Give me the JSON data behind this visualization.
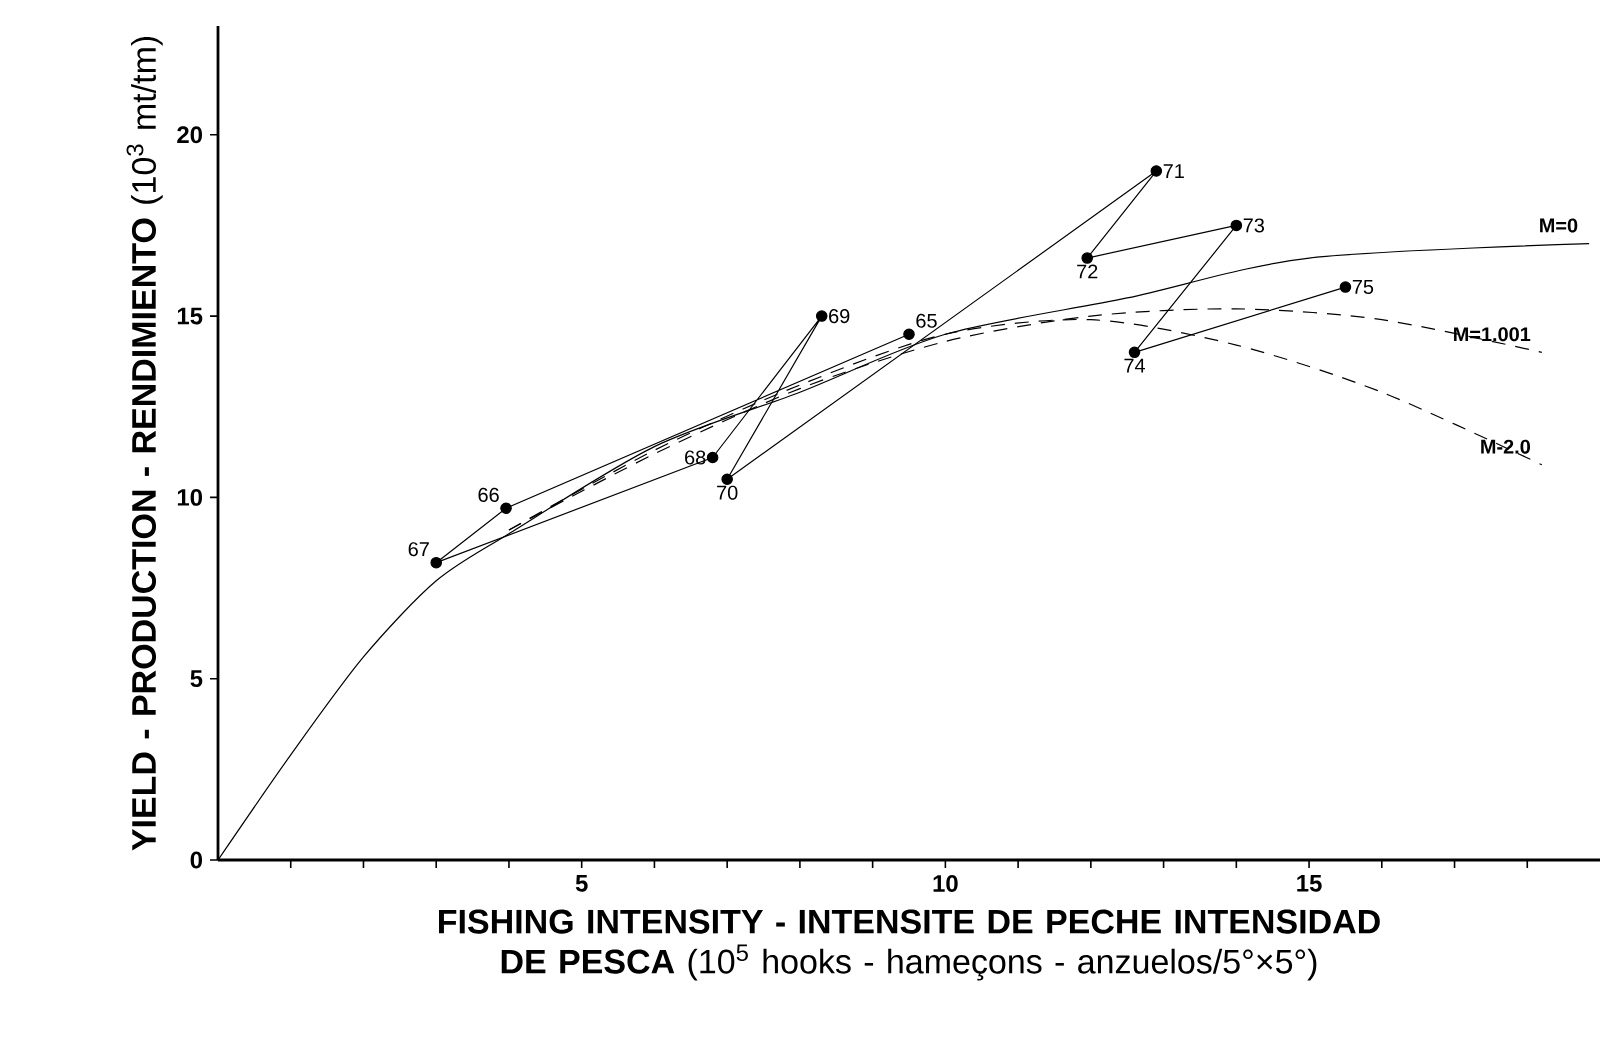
{
  "chart_data": {
    "type": "line",
    "xlabel": "**FISHING INTENSITY - INTENSITE DE PECHE  INTENSIDAD DE PESCA** (10$^{5}$ hooks - hameçons - anzuelos/5°×5°)",
    "ylabel": "**YIELD - PRODUCTION - RENDIMIENTO** (10$^{3}$ mt/tm)",
    "xlim": [
      0,
      19
    ],
    "ylim": [
      0,
      23
    ],
    "xticks": [
      {
        "value": 1,
        "label": null
      },
      {
        "value": 2,
        "label": null
      },
      {
        "value": 3,
        "label": null
      },
      {
        "value": 4,
        "label": null
      },
      5,
      {
        "value": 6,
        "label": null
      },
      {
        "value": 7,
        "label": null
      },
      {
        "value": 8,
        "label": null
      },
      {
        "value": 9,
        "label": null
      },
      10,
      {
        "value": 11,
        "label": null
      },
      {
        "value": 12,
        "label": null
      },
      {
        "value": 13,
        "label": null
      },
      {
        "value": 14,
        "label": null
      },
      15,
      {
        "value": 16,
        "label": null
      },
      {
        "value": 17,
        "label": null
      },
      {
        "value": 18,
        "label": null
      }
    ],
    "yticks": [
      0,
      5,
      10,
      15,
      20
    ],
    "grid": false,
    "series": [
      {
        "color": "#000000",
        "marker": "circle",
        "line_style": "solid",
        "x": [
          9.5,
          3.96,
          3.0,
          6.8,
          8.3,
          7.0,
          12.9,
          11.95,
          14.0,
          12.6,
          15.5
        ],
        "values": [
          14.5,
          9.7,
          8.2,
          11.1,
          15.0,
          10.5,
          19.0,
          16.6,
          17.5,
          14.0,
          15.8
        ]
      },
      {
        "name": "M=0",
        "color": "#000000",
        "marker": "none",
        "line_style": "solid",
        "x": [
          0,
          1,
          2,
          3,
          4,
          6,
          8,
          10,
          12.5,
          15,
          18.85
        ],
        "values": [
          0,
          2.9,
          5.6,
          7.7,
          9.0,
          11.4,
          12.9,
          14.5,
          15.5,
          16.6,
          17.0
        ]
      },
      {
        "name": "M=1.001",
        "color": "#000000",
        "marker": "none",
        "line_style": "dashed",
        "x": [
          4,
          6,
          8,
          10,
          12,
          14,
          16,
          18.2
        ],
        "values": [
          9.1,
          11.2,
          13.0,
          14.3,
          15.0,
          15.2,
          14.9,
          14.0
        ]
      },
      {
        "name": "M-2.0",
        "color": "#000000",
        "marker": "none",
        "line_style": "dashed",
        "x": [
          4,
          6,
          8,
          10,
          12,
          14,
          16,
          18.2
        ],
        "values": [
          9.1,
          11.3,
          13.1,
          14.5,
          14.9,
          14.2,
          12.9,
          10.9
        ]
      }
    ],
    "annotations": [
      {
        "text": "65",
        "x": 9.5,
        "y": 14.5
      },
      {
        "text": "66",
        "x": 3.96,
        "y": 9.7
      },
      {
        "text": "67",
        "x": 3.0,
        "y": 8.2
      },
      {
        "text": "68",
        "x": 6.8,
        "y": 11.1
      },
      {
        "text": "69",
        "x": 8.3,
        "y": 15.0
      },
      {
        "text": "70",
        "x": 7.0,
        "y": 10.5
      },
      {
        "text": "71",
        "x": 12.9,
        "y": 19.0
      },
      {
        "text": "72",
        "x": 11.95,
        "y": 16.6
      },
      {
        "text": "73",
        "x": 14.0,
        "y": 17.5
      },
      {
        "text": "74",
        "x": 12.6,
        "y": 14.0
      },
      {
        "text": "75",
        "x": 15.5,
        "y": 15.8
      }
    ]
  }
}
